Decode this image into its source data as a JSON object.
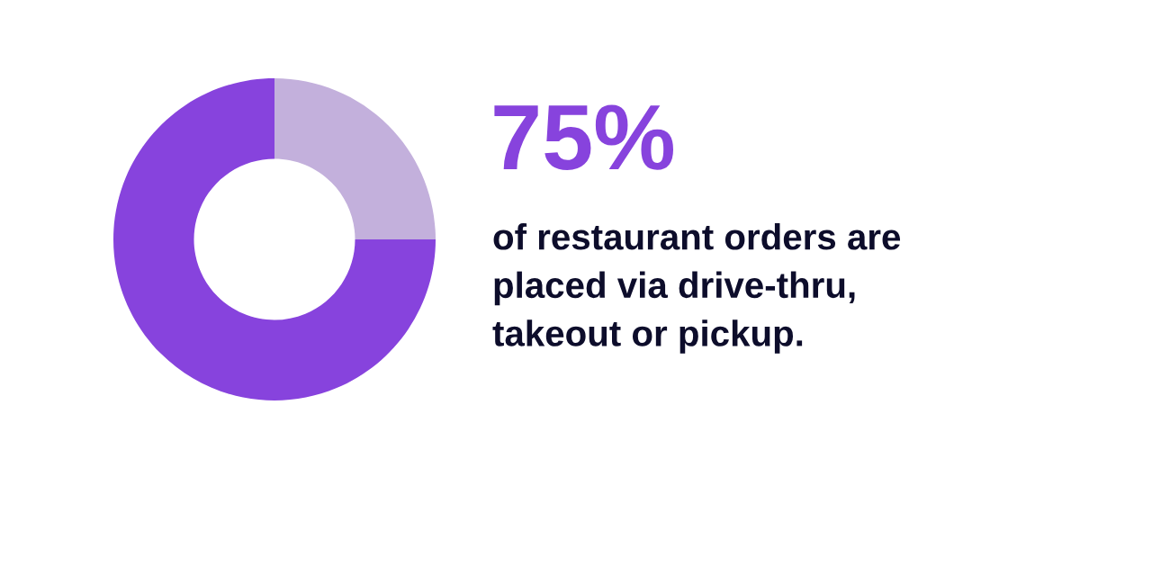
{
  "chart_data": {
    "type": "donut",
    "categories": [
      null,
      null
    ],
    "values": [
      25,
      75
    ],
    "colors": [
      "#c3b0dc",
      "#8743dd"
    ],
    "annotations": [
      "75%",
      "of restaurant orders are\nplaced via drive-thru,\ntakeout or pickup."
    ]
  }
}
